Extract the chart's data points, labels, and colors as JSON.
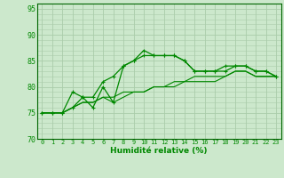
{
  "xlabel": "Humidité relative (%)",
  "bg_color": "#cce8cc",
  "grid_color": "#aaccaa",
  "line_color": "#008800",
  "spine_color": "#006600",
  "ylim": [
    70,
    96
  ],
  "xlim": [
    -0.5,
    23.5
  ],
  "yticks": [
    70,
    75,
    80,
    85,
    90,
    95
  ],
  "xticks": [
    0,
    1,
    2,
    3,
    4,
    5,
    6,
    7,
    8,
    9,
    10,
    11,
    12,
    13,
    14,
    15,
    16,
    17,
    18,
    19,
    20,
    21,
    22,
    23
  ],
  "series": [
    [
      75,
      75,
      75,
      79,
      78,
      76,
      80,
      77,
      84,
      85,
      87,
      86,
      86,
      86,
      85,
      83,
      83,
      83,
      84,
      84,
      84,
      83,
      83,
      82
    ],
    [
      75,
      75,
      75,
      76,
      78,
      78,
      81,
      82,
      84,
      85,
      86,
      86,
      86,
      86,
      85,
      83,
      83,
      83,
      83,
      84,
      84,
      83,
      83,
      82
    ],
    [
      75,
      75,
      75,
      76,
      77,
      77,
      78,
      78,
      79,
      79,
      79,
      80,
      80,
      81,
      81,
      82,
      82,
      82,
      82,
      83,
      83,
      82,
      82,
      82
    ],
    [
      75,
      75,
      75,
      76,
      77,
      77,
      78,
      77,
      78,
      79,
      79,
      80,
      80,
      80,
      81,
      81,
      81,
      81,
      82,
      83,
      83,
      82,
      82,
      82
    ]
  ],
  "marker_series": [
    0,
    1
  ],
  "marker": "+"
}
